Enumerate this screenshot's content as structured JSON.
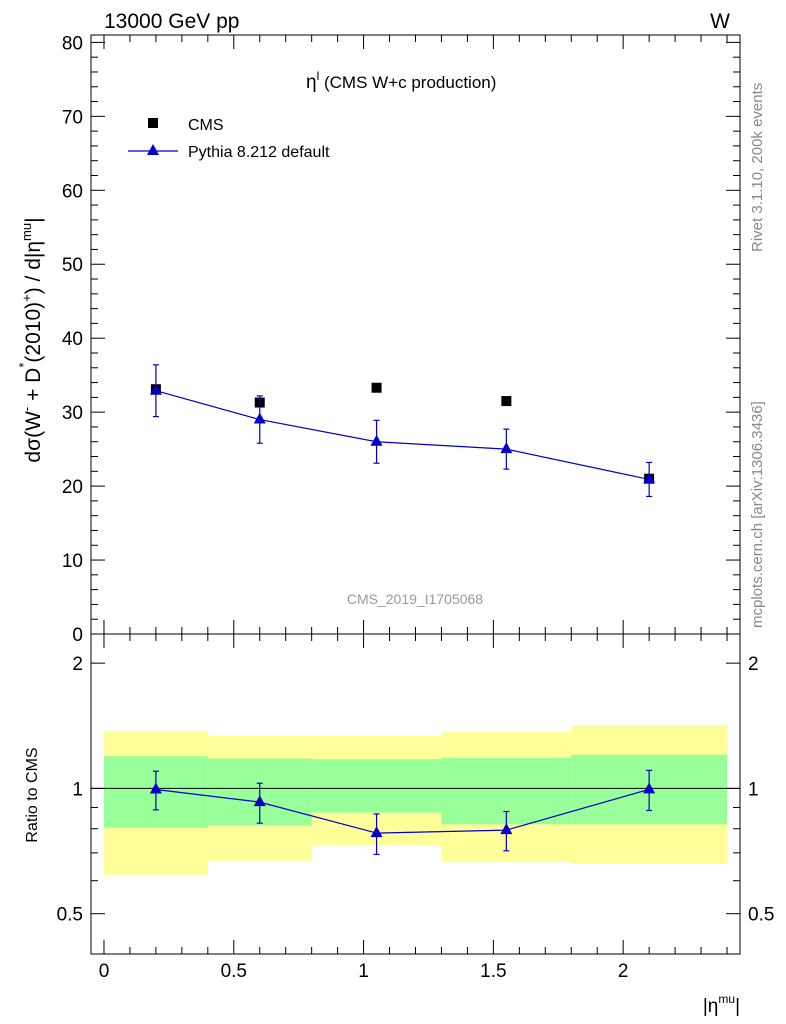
{
  "header": {
    "energy_label": "13000 GeV pp",
    "process_label": "W"
  },
  "side_labels": {
    "rivet": "Rivet 3.1.10,  200k events",
    "mcplots": "mcplots.cern.ch [arXiv:1306.3436]"
  },
  "main_plot": {
    "title_symbol": "η",
    "title_sup": "l",
    "title_text": "(CMS W+c production)",
    "analysis_id": "CMS_2019_I1705068",
    "ylabel": {
      "part1": "dσ(W",
      "sup1": "-",
      "part2": " + D",
      "sup2": "*",
      "part3": "(2010)",
      "sup3": "+",
      "part4": ") / d|η",
      "sup4": "mu",
      "part5": "|"
    },
    "legend": [
      {
        "label": "CMS"
      },
      {
        "label": "Pythia 8.212 default"
      }
    ],
    "y_ticks": [
      "0",
      "10",
      "20",
      "30",
      "40",
      "50",
      "60",
      "70",
      "80"
    ]
  },
  "ratio_plot": {
    "ylabel": "Ratio to CMS",
    "y_ticks": [
      "0.5",
      "1",
      "2"
    ]
  },
  "x_axis": {
    "label_main": "|η",
    "label_sup": "mu",
    "label_end": "|",
    "ticks": [
      "0",
      "0.5",
      "1",
      "1.5",
      "2"
    ]
  },
  "chart_data": {
    "type": "scatter",
    "title": "η^l (CMS W+c production)",
    "xlabel": "|η^mu|",
    "ylabel": "dσ(W- + D*(2010)+) / d|η^mu|",
    "xlim": [
      -0.05,
      2.45
    ],
    "ylim": [
      0,
      81
    ],
    "bins": [
      [
        0.0,
        0.4
      ],
      [
        0.4,
        0.8
      ],
      [
        0.8,
        1.3
      ],
      [
        1.3,
        1.8
      ],
      [
        1.8,
        2.4
      ]
    ],
    "series": [
      {
        "name": "CMS",
        "x": [
          0.2,
          0.6,
          1.05,
          1.55,
          2.1
        ],
        "y": [
          33.1,
          31.3,
          33.3,
          31.5,
          21.0
        ],
        "color": "#000000",
        "marker": "square"
      },
      {
        "name": "Pythia 8.212 default",
        "x": [
          0.2,
          0.6,
          1.05,
          1.55,
          2.1
        ],
        "y": [
          32.9,
          29.0,
          26.0,
          25.0,
          20.9
        ],
        "yerr": [
          3.5,
          3.2,
          2.9,
          2.7,
          2.3
        ],
        "color": "#0000cc",
        "marker": "triangle"
      }
    ],
    "ratio": {
      "ylabel": "Ratio to CMS",
      "ylim_log": [
        0.4,
        2.35
      ],
      "values": [
        0.994,
        0.927,
        0.781,
        0.794,
        0.995
      ],
      "errors": [
        0.106,
        0.102,
        0.087,
        0.086,
        0.11
      ],
      "band_inner": [
        [
          0.805,
          1.195
        ],
        [
          0.815,
          1.18
        ],
        [
          0.875,
          1.175
        ],
        [
          0.82,
          1.185
        ],
        [
          0.82,
          1.205
        ]
      ],
      "band_outer": [
        [
          0.62,
          1.375
        ],
        [
          0.67,
          1.34
        ],
        [
          0.73,
          1.34
        ],
        [
          0.665,
          1.365
        ],
        [
          0.66,
          1.42
        ]
      ],
      "band_inner_color": "#99ff99",
      "band_outer_color": "#ffff99"
    }
  }
}
